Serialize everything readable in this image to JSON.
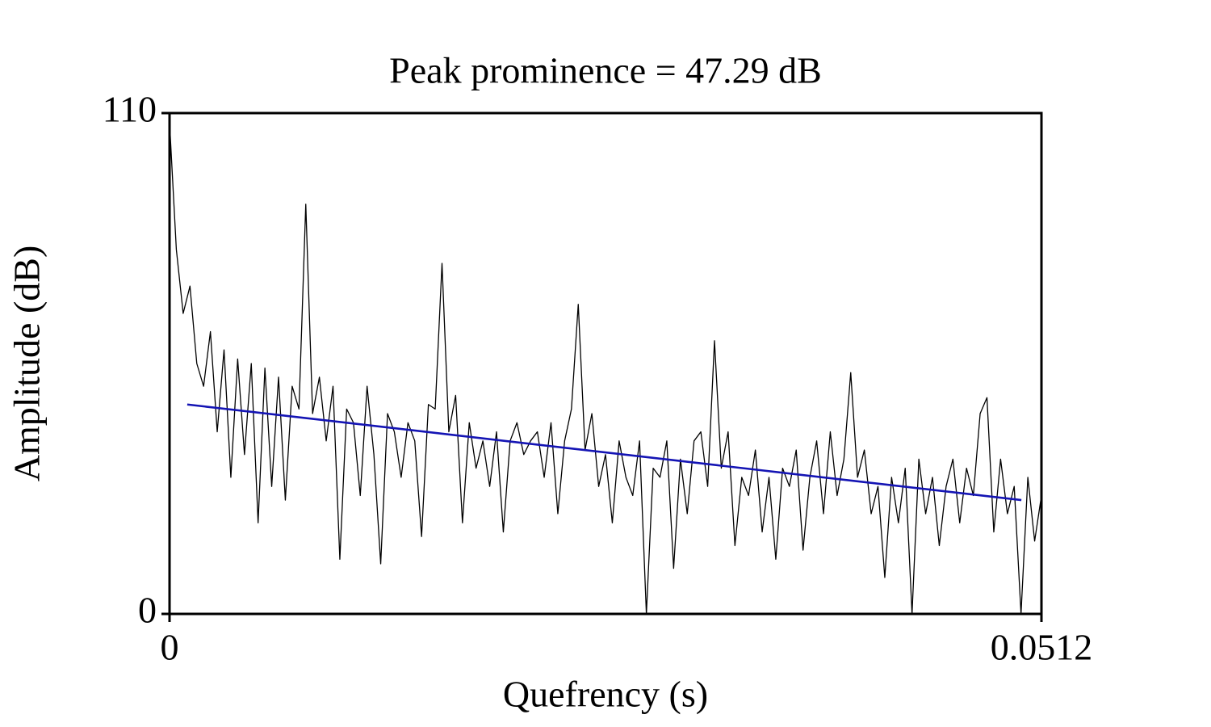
{
  "chart_data": {
    "type": "line",
    "title": "Peak prominence = 47.29 dB",
    "x_label": "Quefrency (s)",
    "y_label": "Amplitude (dB)",
    "xlim": [
      0,
      0.0512
    ],
    "xticks": [
      0,
      0.0512
    ],
    "ylim": [
      0,
      110
    ],
    "yticks": [
      0,
      110
    ],
    "grid": false,
    "series": [
      {
        "color": "#000000",
        "x": [
          0,
          0.0004,
          0.0008,
          0.0012,
          0.0016,
          0.002,
          0.0024,
          0.0028,
          0.0032,
          0.0036,
          0.004,
          0.0044,
          0.0048,
          0.0052,
          0.0056,
          0.006,
          0.0064,
          0.0068,
          0.0072,
          0.0076,
          0.008,
          0.0084,
          0.0088,
          0.0092,
          0.0096,
          0.01,
          0.0104,
          0.0108,
          0.0112,
          0.0116,
          0.012,
          0.0124,
          0.0128,
          0.0132,
          0.0136,
          0.014,
          0.0144,
          0.0148,
          0.0152,
          0.0156,
          0.016,
          0.0164,
          0.0168,
          0.0172,
          0.0176,
          0.018,
          0.0184,
          0.0188,
          0.0192,
          0.0196,
          0.02,
          0.0204,
          0.0208,
          0.0212,
          0.0216,
          0.022,
          0.0224,
          0.0228,
          0.0232,
          0.0236,
          0.024,
          0.0244,
          0.0248,
          0.0252,
          0.0256,
          0.026,
          0.0264,
          0.0268,
          0.0272,
          0.0276,
          0.028,
          0.0284,
          0.0288,
          0.0292,
          0.0296,
          0.03,
          0.0304,
          0.0308,
          0.0312,
          0.0316,
          0.032,
          0.0324,
          0.0328,
          0.0332,
          0.0336,
          0.034,
          0.0344,
          0.0348,
          0.0352,
          0.0356,
          0.036,
          0.0364,
          0.0368,
          0.0372,
          0.0376,
          0.038,
          0.0384,
          0.0388,
          0.0392,
          0.0396,
          0.04,
          0.0404,
          0.0408,
          0.0412,
          0.0416,
          0.042,
          0.0424,
          0.0428,
          0.0432,
          0.0436,
          0.044,
          0.0444,
          0.0448,
          0.0452,
          0.0456,
          0.046,
          0.0464,
          0.0468,
          0.0472,
          0.0476,
          0.048,
          0.0484,
          0.0488,
          0.0492,
          0.0496,
          0.05,
          0.0504,
          0.0508,
          0.0512
        ],
        "values": [
          108,
          80,
          66,
          72,
          55,
          50,
          62,
          40,
          58,
          30,
          56,
          35,
          55,
          20,
          54,
          28,
          52,
          25,
          50,
          45,
          90,
          44,
          52,
          38,
          50,
          12,
          45,
          42,
          26,
          50,
          35,
          11,
          44,
          40,
          30,
          42,
          38,
          17,
          46,
          45,
          77,
          40,
          48,
          20,
          42,
          32,
          38,
          28,
          40,
          18,
          38,
          42,
          35,
          38,
          40,
          30,
          42,
          22,
          38,
          45,
          68,
          36,
          44,
          28,
          35,
          20,
          38,
          30,
          26,
          38,
          0,
          32,
          30,
          38,
          10,
          34,
          22,
          38,
          40,
          28,
          60,
          32,
          40,
          15,
          30,
          26,
          36,
          18,
          30,
          12,
          32,
          28,
          36,
          14,
          30,
          38,
          22,
          40,
          26,
          34,
          53,
          30,
          36,
          22,
          28,
          8,
          30,
          20,
          32,
          0,
          34,
          22,
          30,
          15,
          28,
          34,
          20,
          32,
          26,
          44,
          47.5,
          18,
          34,
          22,
          28,
          0,
          30,
          16,
          26
        ]
      },
      {
        "color": "#1414b4",
        "x": [
          0.00104,
          0.05002
        ],
        "values": [
          46,
          25
        ]
      }
    ]
  }
}
